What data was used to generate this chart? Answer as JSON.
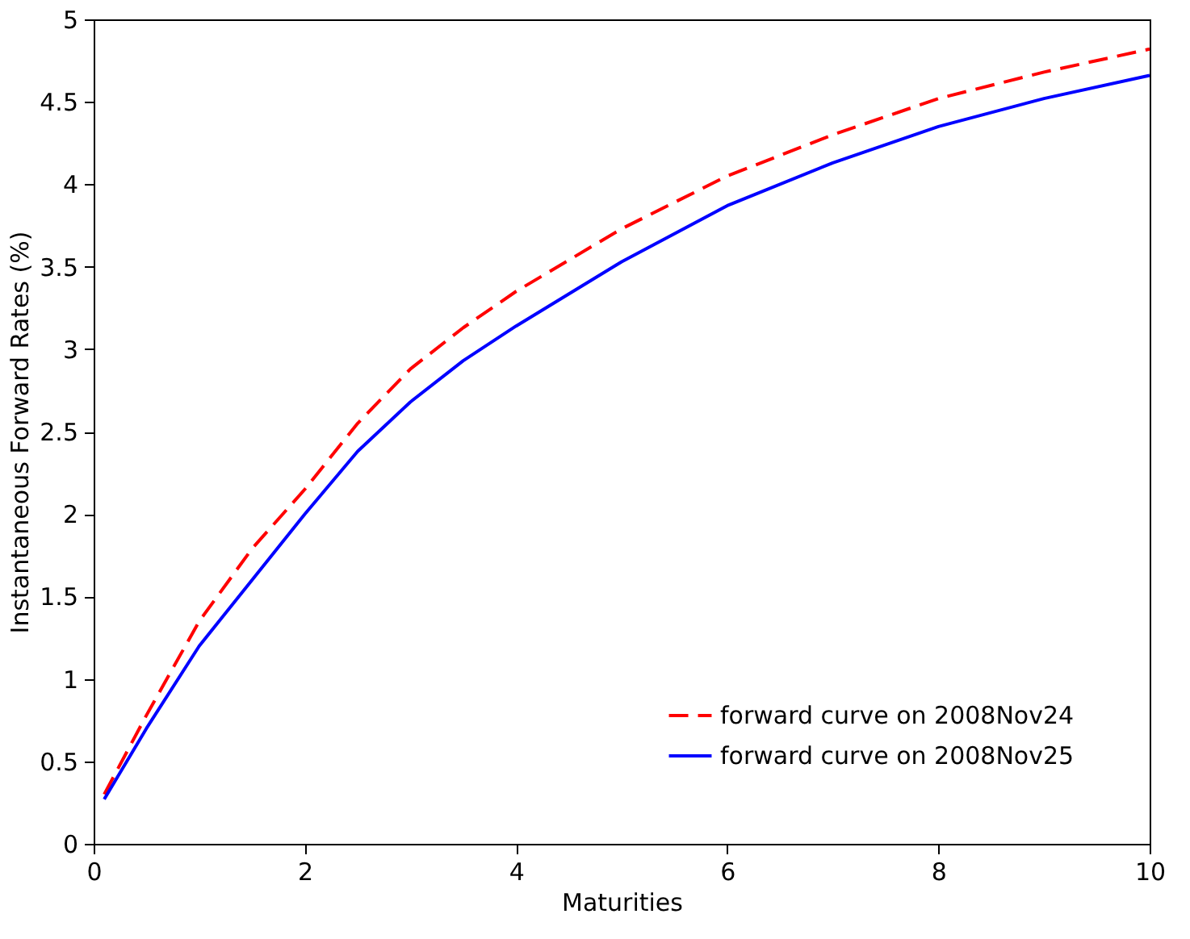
{
  "chart_data": {
    "type": "line",
    "xlabel": "Maturities",
    "ylabel": "Instantaneous Forward Rates (%)",
    "xlim": [
      0,
      10
    ],
    "ylim": [
      0,
      5
    ],
    "xticks": [
      0,
      2,
      4,
      6,
      8,
      10
    ],
    "yticks": [
      0,
      0.5,
      1,
      1.5,
      2,
      2.5,
      3,
      3.5,
      4,
      4.5,
      5
    ],
    "grid": false,
    "legend": "bottom right",
    "marker": "none",
    "x": [
      0.1,
      0.5,
      1,
      1.5,
      2,
      2.5,
      3,
      3.5,
      4,
      5,
      6,
      7,
      8,
      9,
      10
    ],
    "series": [
      {
        "name": "forward curve on 2008Nov24",
        "color": "#ff0000",
        "line_style": "dashed",
        "values": [
          0.3,
          0.78,
          1.35,
          1.79,
          2.15,
          2.55,
          2.88,
          3.13,
          3.35,
          3.73,
          4.05,
          4.3,
          4.52,
          4.68,
          4.82
        ]
      },
      {
        "name": "forward curve on 2008Nov25",
        "color": "#0000ff",
        "line_style": "solid",
        "values": [
          0.27,
          0.7,
          1.2,
          1.6,
          2.0,
          2.38,
          2.68,
          2.93,
          3.14,
          3.53,
          3.87,
          4.13,
          4.35,
          4.52,
          4.66
        ]
      }
    ]
  }
}
